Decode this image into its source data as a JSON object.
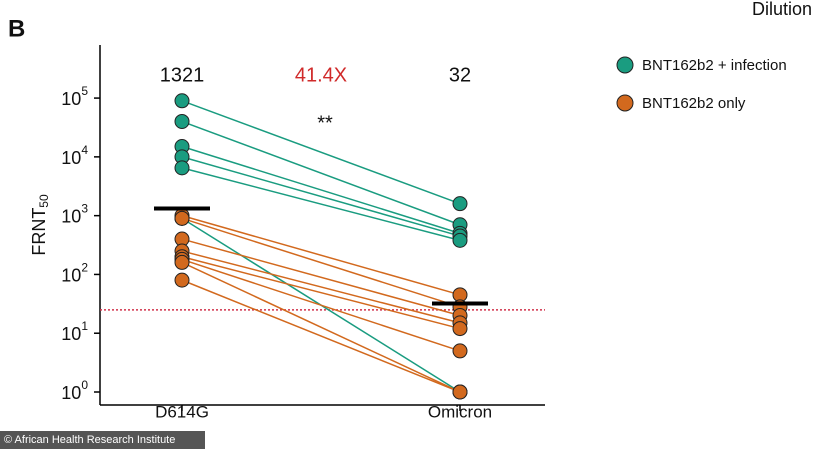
{
  "chart_data": {
    "type": "paired-dot",
    "panel_label": "B",
    "top_text": "Dilution",
    "y_label": "FRNT",
    "y_label_sub": "50",
    "categories": [
      "D614G",
      "Omicron"
    ],
    "log_y": true,
    "ylim": [
      1,
      800000
    ],
    "yticks": [
      {
        "value": 1,
        "label": "10",
        "exponent": "0"
      },
      {
        "value": 10,
        "label": "10",
        "exponent": "1"
      },
      {
        "value": 100,
        "label": "10",
        "exponent": "2"
      },
      {
        "value": 1000,
        "label": "10",
        "exponent": "3"
      },
      {
        "value": 10000,
        "label": "10",
        "exponent": "4"
      },
      {
        "value": 100000,
        "label": "10",
        "exponent": "5"
      }
    ],
    "series": [
      {
        "name": "BNT162b2 + infection",
        "color": "#1a9c80",
        "values": [
          [
            90000,
            40000,
            15000,
            10000,
            6500,
            900
          ],
          [
            1600,
            700,
            500,
            450,
            380,
            1
          ]
        ]
      },
      {
        "name": "BNT162b2 only",
        "color": "#d2691e",
        "values": [
          [
            1000,
            900,
            400,
            250,
            200,
            180,
            160,
            80
          ],
          [
            45,
            28,
            20,
            15,
            12,
            5,
            1,
            1
          ]
        ]
      }
    ],
    "gmt": [
      1321,
      32
    ],
    "fold_label": "41.4X",
    "significance": "**",
    "threshold": 25,
    "watermark": "© African Health Research Institute"
  }
}
